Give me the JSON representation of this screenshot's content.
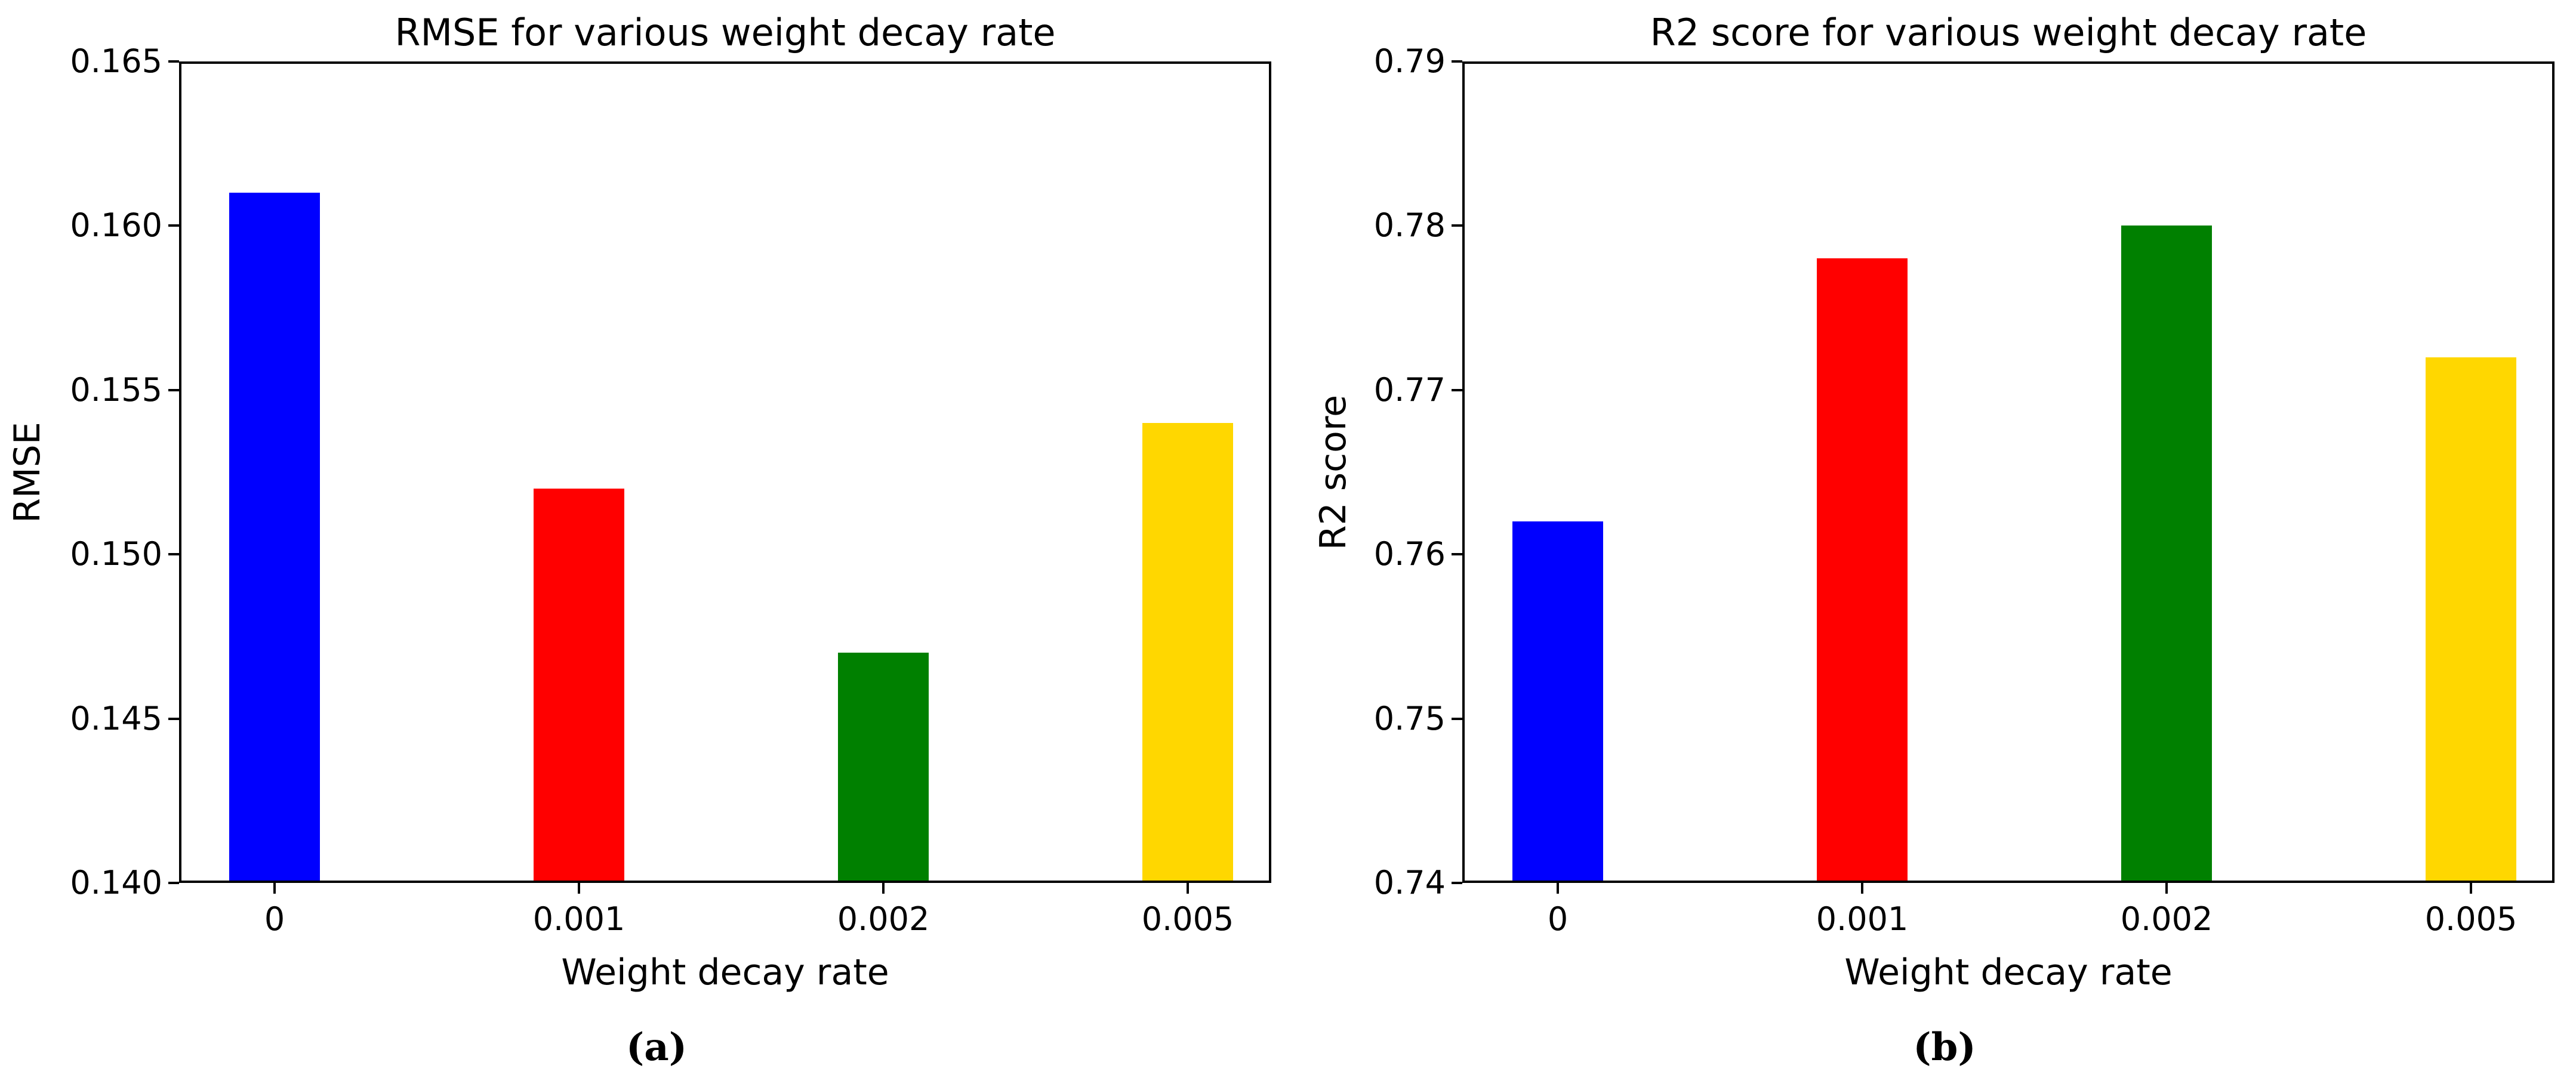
{
  "figure": {
    "background": "#ffffff",
    "text_color": "#000000"
  },
  "chart_data": [
    {
      "type": "bar",
      "title": "RMSE for various weight decay rate",
      "xlabel": "Weight decay rate",
      "ylabel": "RMSE",
      "caption": "(a)",
      "categories": [
        "0",
        "0.001",
        "0.002",
        "0.005"
      ],
      "values": [
        0.161,
        0.152,
        0.147,
        0.154
      ],
      "bar_colors": [
        "#0000ff",
        "#ff0000",
        "#008000",
        "#ffd700"
      ],
      "ylim": [
        0.14,
        0.165
      ],
      "ytick_values": [
        0.14,
        0.145,
        0.15,
        0.155,
        0.16,
        0.165
      ],
      "ytick_labels": [
        "0.140",
        "0.145",
        "0.150",
        "0.155",
        "0.160",
        "0.165"
      ],
      "grid": false,
      "legend": null
    },
    {
      "type": "bar",
      "title": "R2 score for various weight decay rate",
      "xlabel": "Weight decay rate",
      "ylabel": "R2 score",
      "caption": "(b)",
      "categories": [
        "0",
        "0.001",
        "0.002",
        "0.005"
      ],
      "values": [
        0.762,
        0.778,
        0.78,
        0.772
      ],
      "bar_colors": [
        "#0000ff",
        "#ff0000",
        "#008000",
        "#ffd700"
      ],
      "ylim": [
        0.74,
        0.79
      ],
      "ytick_values": [
        0.74,
        0.75,
        0.76,
        0.77,
        0.78,
        0.79
      ],
      "ytick_labels": [
        "0.74",
        "0.75",
        "0.76",
        "0.77",
        "0.78",
        "0.79"
      ],
      "grid": false,
      "legend": null
    }
  ]
}
